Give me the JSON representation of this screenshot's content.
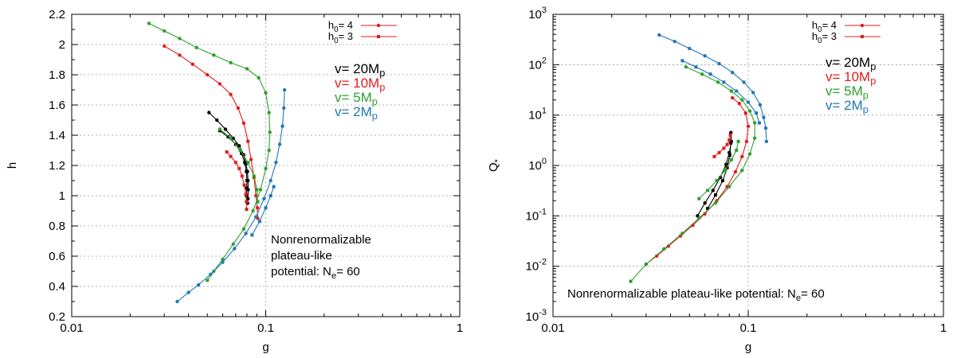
{
  "chart_data": [
    {
      "type": "line",
      "xlabel": "g",
      "ylabel": "h",
      "xscale": "log",
      "yscale": "linear",
      "xlim": [
        0.01,
        1
      ],
      "ylim": [
        0.2,
        2.2
      ],
      "grid": true,
      "xticks": [
        {
          "value": 0.01,
          "label": "0.01"
        },
        {
          "value": 0.1,
          "label": "0.1"
        },
        {
          "value": 1,
          "label": "1"
        }
      ],
      "yticks": [
        {
          "value": 0.2,
          "label": "0.2"
        },
        {
          "value": 0.4,
          "label": "0.4"
        },
        {
          "value": 0.6,
          "label": "0.6"
        },
        {
          "value": 0.8,
          "label": "0.8"
        },
        {
          "value": 1.0,
          "label": "1"
        },
        {
          "value": 1.2,
          "label": "1.2"
        },
        {
          "value": 1.4,
          "label": "1.4"
        },
        {
          "value": 1.6,
          "label": "1.6"
        },
        {
          "value": 1.8,
          "label": "1.8"
        },
        {
          "value": 2.0,
          "label": "2"
        },
        {
          "value": 2.2,
          "label": "2.2"
        }
      ],
      "legend": {
        "placement": "top-right",
        "entries": [
          {
            "base": "h",
            "sub": "0",
            "rest": "= 4",
            "marker": "circle",
            "color": "#e41a1c"
          },
          {
            "base": "h",
            "sub": "0",
            "rest": "= 3",
            "marker": "square",
            "color": "#e41a1c"
          }
        ]
      },
      "v_labels": [
        {
          "base": "v= 20M",
          "sub": "p",
          "color": "#000000"
        },
        {
          "base": "v= 10M",
          "sub": "p",
          "color": "#e41a1c"
        },
        {
          "base": "v= 5M",
          "sub": "p",
          "color": "#2ca02c"
        },
        {
          "base": "v= 2M",
          "sub": "p",
          "color": "#1f78b4"
        }
      ],
      "annotation": {
        "lines": [
          "Nonrenormalizable",
          "plateau-like"
        ],
        "last_line": {
          "base": "potential: N",
          "sub": "e",
          "rest": "= 60"
        }
      },
      "series": [
        {
          "color": "#000000",
          "marker": "circle",
          "points": [
            [
              0.051,
              1.55
            ],
            [
              0.056,
              1.5
            ],
            [
              0.062,
              1.44
            ],
            [
              0.068,
              1.38
            ],
            [
              0.073,
              1.33
            ],
            [
              0.077,
              1.27
            ],
            [
              0.079,
              1.21
            ],
            [
              0.0805,
              1.16
            ],
            [
              0.081,
              1.1
            ],
            [
              0.0812,
              1.04
            ],
            [
              0.081,
              0.98
            ],
            [
              0.0807,
              0.95
            ]
          ]
        },
        {
          "color": "#000000",
          "marker": "square",
          "points": [
            [
              0.058,
              1.43
            ],
            [
              0.064,
              1.39
            ],
            [
              0.07,
              1.34
            ],
            [
              0.075,
              1.28
            ],
            [
              0.078,
              1.22
            ],
            [
              0.0795,
              1.16
            ],
            [
              0.08,
              1.1
            ],
            [
              0.0798,
              1.05
            ],
            [
              0.0796,
              1.0
            ]
          ]
        },
        {
          "color": "#e41a1c",
          "marker": "circle",
          "points": [
            [
              0.03,
              1.99
            ],
            [
              0.036,
              1.93
            ],
            [
              0.042,
              1.87
            ],
            [
              0.05,
              1.8
            ],
            [
              0.058,
              1.74
            ],
            [
              0.066,
              1.67
            ],
            [
              0.072,
              1.58
            ],
            [
              0.077,
              1.48
            ],
            [
              0.081,
              1.36
            ],
            [
              0.084,
              1.24
            ],
            [
              0.087,
              1.12
            ],
            [
              0.089,
              1.0
            ],
            [
              0.0905,
              0.92
            ],
            [
              0.091,
              0.85
            ]
          ]
        },
        {
          "color": "#e41a1c",
          "marker": "square",
          "points": [
            [
              0.063,
              1.29
            ],
            [
              0.066,
              1.26
            ],
            [
              0.07,
              1.22
            ],
            [
              0.073,
              1.18
            ],
            [
              0.0755,
              1.13
            ],
            [
              0.0775,
              1.07
            ],
            [
              0.079,
              1.01
            ],
            [
              0.0795,
              0.96
            ],
            [
              0.0797,
              0.91
            ]
          ]
        },
        {
          "color": "#2ca02c",
          "marker": "circle",
          "points": [
            [
              0.025,
              2.14
            ],
            [
              0.03,
              2.09
            ],
            [
              0.036,
              2.04
            ],
            [
              0.044,
              1.98
            ],
            [
              0.054,
              1.93
            ],
            [
              0.066,
              1.88
            ],
            [
              0.08,
              1.84
            ],
            [
              0.092,
              1.78
            ],
            [
              0.1,
              1.68
            ],
            [
              0.104,
              1.55
            ],
            [
              0.105,
              1.42
            ],
            [
              0.104,
              1.3
            ],
            [
              0.1,
              1.18
            ],
            [
              0.094,
              1.04
            ],
            [
              0.086,
              0.9
            ],
            [
              0.077,
              0.78
            ],
            [
              0.068,
              0.68
            ],
            [
              0.06,
              0.58
            ],
            [
              0.054,
              0.5
            ],
            [
              0.05,
              0.44
            ]
          ]
        },
        {
          "color": "#2ca02c",
          "marker": "square",
          "points": [
            [
              0.058,
              1.44
            ],
            [
              0.066,
              1.38
            ],
            [
              0.074,
              1.3
            ],
            [
              0.081,
              1.22
            ],
            [
              0.087,
              1.13
            ],
            [
              0.09,
              1.04
            ],
            [
              0.091,
              0.96
            ]
          ]
        },
        {
          "color": "#1f78b4",
          "marker": "circle",
          "points": [
            [
              0.125,
              1.7
            ],
            [
              0.124,
              1.58
            ],
            [
              0.122,
              1.46
            ],
            [
              0.118,
              1.34
            ],
            [
              0.113,
              1.22
            ],
            [
              0.106,
              1.1
            ],
            [
              0.098,
              0.98
            ],
            [
              0.089,
              0.86
            ],
            [
              0.079,
              0.75
            ],
            [
              0.069,
              0.65
            ],
            [
              0.06,
              0.56
            ],
            [
              0.052,
              0.48
            ],
            [
              0.045,
              0.41
            ],
            [
              0.04,
              0.36
            ],
            [
              0.035,
              0.3
            ]
          ]
        },
        {
          "color": "#1f78b4",
          "marker": "square",
          "points": [
            [
              0.11,
              1.06
            ],
            [
              0.106,
              1.0
            ],
            [
              0.1,
              0.92
            ],
            [
              0.093,
              0.83
            ],
            [
              0.085,
              0.74
            ]
          ]
        }
      ]
    },
    {
      "type": "line",
      "xlabel": "g",
      "ylabel": "Q",
      "ylabel_sub": "*",
      "xscale": "log",
      "yscale": "log",
      "xlim": [
        0.01,
        1
      ],
      "ylim": [
        0.001,
        1000
      ],
      "grid": true,
      "xticks": [
        {
          "value": 0.01,
          "label": "0.01"
        },
        {
          "value": 0.1,
          "label": "0.1"
        },
        {
          "value": 1,
          "label": "1"
        }
      ],
      "yticks": [
        {
          "value": 0.001,
          "exp": "-3"
        },
        {
          "value": 0.01,
          "exp": "-2"
        },
        {
          "value": 0.1,
          "exp": "-1"
        },
        {
          "value": 1,
          "exp": "0"
        },
        {
          "value": 10,
          "exp": "1"
        },
        {
          "value": 100,
          "exp": "2"
        },
        {
          "value": 1000,
          "exp": "3"
        }
      ],
      "ytick_base": "10",
      "legend": {
        "placement": "top-right",
        "entries": [
          {
            "base": "h",
            "sub": "0",
            "rest": "= 4",
            "marker": "circle",
            "color": "#e41a1c"
          },
          {
            "base": "h",
            "sub": "0",
            "rest": "= 3",
            "marker": "square",
            "color": "#e41a1c"
          }
        ]
      },
      "v_labels": [
        {
          "base": "v= 20M",
          "sub": "p",
          "color": "#000000"
        },
        {
          "base": "v= 10M",
          "sub": "p",
          "color": "#e41a1c"
        },
        {
          "base": "v= 5M",
          "sub": "p",
          "color": "#2ca02c"
        },
        {
          "base": "v= 2M",
          "sub": "p",
          "color": "#1f78b4"
        }
      ],
      "annotation": {
        "lines": [],
        "last_line": {
          "base": "Nonrenormalizable plateau-like potential: N",
          "sub": "e",
          "rest": "= 60"
        }
      },
      "series": [
        {
          "color": "#000000",
          "marker": "circle",
          "points": [
            [
              0.055,
              0.1
            ],
            [
              0.06,
              0.18
            ],
            [
              0.066,
              0.32
            ],
            [
              0.072,
              0.58
            ],
            [
              0.077,
              1.05
            ],
            [
              0.08,
              1.8
            ],
            [
              0.082,
              3.0
            ],
            [
              0.0815,
              4.5
            ]
          ]
        },
        {
          "color": "#000000",
          "marker": "square",
          "points": [
            [
              0.062,
              0.14
            ],
            [
              0.068,
              0.26
            ],
            [
              0.074,
              0.5
            ],
            [
              0.078,
              0.9
            ],
            [
              0.0805,
              1.6
            ],
            [
              0.0815,
              2.8
            ]
          ]
        },
        {
          "color": "#e41a1c",
          "marker": "circle",
          "points": [
            [
              0.03,
              0.011
            ],
            [
              0.034,
              0.016
            ],
            [
              0.039,
              0.025
            ],
            [
              0.045,
              0.04
            ],
            [
              0.052,
              0.065
            ],
            [
              0.06,
              0.11
            ],
            [
              0.069,
              0.2
            ],
            [
              0.078,
              0.38
            ],
            [
              0.086,
              0.75
            ],
            [
              0.093,
              1.5
            ],
            [
              0.098,
              3.0
            ],
            [
              0.1,
              6.0
            ],
            [
              0.097,
              11
            ],
            [
              0.09,
              17
            ],
            [
              0.083,
              22
            ]
          ]
        },
        {
          "color": "#e41a1c",
          "marker": "square",
          "points": [
            [
              0.067,
              1.5
            ],
            [
              0.071,
              1.8
            ],
            [
              0.075,
              2.2
            ],
            [
              0.078,
              2.6
            ],
            [
              0.08,
              3.2
            ],
            [
              0.081,
              4.0
            ]
          ]
        },
        {
          "color": "#2ca02c",
          "marker": "circle",
          "points": [
            [
              0.025,
              0.005
            ],
            [
              0.03,
              0.011
            ],
            [
              0.037,
              0.022
            ],
            [
              0.046,
              0.045
            ],
            [
              0.056,
              0.09
            ],
            [
              0.068,
              0.18
            ],
            [
              0.08,
              0.38
            ],
            [
              0.093,
              0.8
            ],
            [
              0.102,
              1.7
            ],
            [
              0.108,
              3.5
            ],
            [
              0.108,
              7.0
            ],
            [
              0.102,
              12
            ],
            [
              0.093,
              20
            ],
            [
              0.082,
              30
            ],
            [
              0.07,
              45
            ],
            [
              0.058,
              65
            ],
            [
              0.048,
              90
            ]
          ]
        },
        {
          "color": "#2ca02c",
          "marker": "square",
          "points": [
            [
              0.056,
              0.22
            ],
            [
              0.062,
              0.32
            ],
            [
              0.069,
              0.5
            ],
            [
              0.076,
              0.8
            ],
            [
              0.082,
              1.3
            ],
            [
              0.087,
              2.0
            ],
            [
              0.089,
              3.0
            ]
          ]
        },
        {
          "color": "#1f78b4",
          "marker": "circle",
          "points": [
            [
              0.035,
              390
            ],
            [
              0.042,
              290
            ],
            [
              0.05,
              210
            ],
            [
              0.06,
              150
            ],
            [
              0.071,
              105
            ],
            [
              0.083,
              70
            ],
            [
              0.095,
              45
            ],
            [
              0.106,
              28
            ],
            [
              0.115,
              16
            ],
            [
              0.12,
              9
            ],
            [
              0.123,
              5.5
            ],
            [
              0.124,
              3.0
            ]
          ]
        },
        {
          "color": "#1f78b4",
          "marker": "square",
          "points": [
            [
              0.046,
              120
            ],
            [
              0.054,
              90
            ],
            [
              0.064,
              65
            ],
            [
              0.075,
              45
            ],
            [
              0.087,
              30
            ],
            [
              0.1,
              18
            ],
            [
              0.11,
              11
            ],
            [
              0.114,
              7
            ]
          ]
        }
      ]
    }
  ]
}
